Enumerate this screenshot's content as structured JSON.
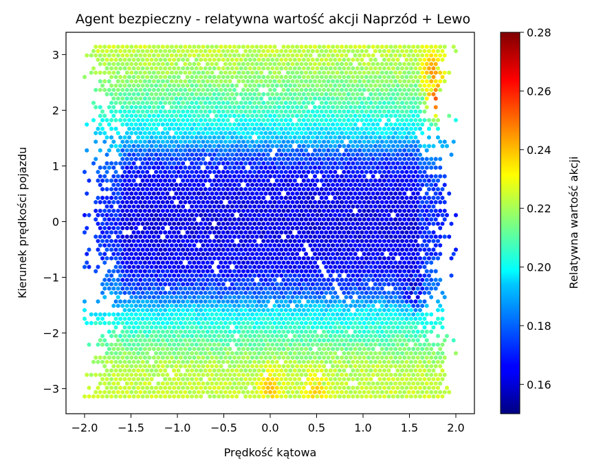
{
  "chart_data": {
    "type": "heatmap",
    "subtype": "hexbin",
    "title": "Agent bezpieczny - relatywna wartość akcji Naprzód + Lewo",
    "xlabel": "Prędkość kątowa",
    "ylabel": "Kierunek prędkości pojazdu",
    "xlim": [
      -2.2,
      2.2
    ],
    "ylim": [
      -3.45,
      3.4
    ],
    "x_ticks": [
      -2.0,
      -1.5,
      -1.0,
      -0.5,
      0.0,
      0.5,
      1.0,
      1.5,
      2.0
    ],
    "x_tick_labels": [
      "−2.0",
      "−1.5",
      "−1.0",
      "−0.5",
      "0.0",
      "0.5",
      "1.0",
      "1.5",
      "2.0"
    ],
    "y_ticks": [
      3,
      2,
      1,
      0,
      -1,
      -2,
      -3
    ],
    "y_tick_labels": [
      "3",
      "2",
      "1",
      "0",
      "−1",
      "−2",
      "−3"
    ],
    "data_extent": {
      "x": [
        -2.0,
        2.0
      ],
      "y": [
        -3.14,
        3.14
      ]
    },
    "colormap": "jet",
    "colorbar": {
      "label": "Relatywna wartość akcji",
      "range": [
        0.15,
        0.28
      ],
      "ticks": [
        0.16,
        0.18,
        0.2,
        0.22,
        0.24,
        0.26,
        0.28
      ],
      "tick_labels": [
        "0.16",
        "0.18",
        "0.20",
        "0.22",
        "0.24",
        "0.26",
        "0.28"
      ]
    },
    "value_profile_by_y": [
      {
        "y": -3.14,
        "value": 0.224
      },
      {
        "y": -2.6,
        "value": 0.222
      },
      {
        "y": -2.0,
        "value": 0.207
      },
      {
        "y": -1.6,
        "value": 0.196
      },
      {
        "y": -1.3,
        "value": 0.178
      },
      {
        "y": -0.8,
        "value": 0.166
      },
      {
        "y": 0.0,
        "value": 0.162
      },
      {
        "y": 0.8,
        "value": 0.166
      },
      {
        "y": 1.2,
        "value": 0.176
      },
      {
        "y": 1.55,
        "value": 0.194
      },
      {
        "y": 2.0,
        "value": 0.206
      },
      {
        "y": 2.6,
        "value": 0.218
      },
      {
        "y": 3.14,
        "value": 0.224
      }
    ],
    "hotspots": [
      {
        "x": 1.8,
        "y": 2.2,
        "value": 0.255
      },
      {
        "x": 1.75,
        "y": 2.7,
        "value": 0.245
      },
      {
        "x": 0.0,
        "y": -3.0,
        "value": 0.24
      },
      {
        "x": 0.5,
        "y": -3.05,
        "value": 0.238
      },
      {
        "x": 1.55,
        "y": -1.2,
        "value": 0.158
      }
    ],
    "grid": false,
    "legend": "none"
  }
}
